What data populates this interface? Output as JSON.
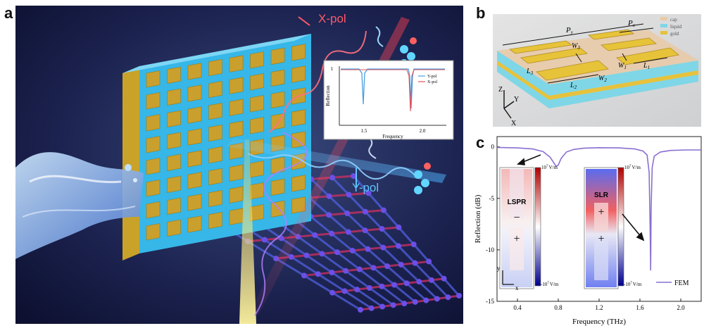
{
  "panels": {
    "a": "a",
    "b": "b",
    "c": "c"
  },
  "panel_a": {
    "xpol_label": "X-pol",
    "ypol_label": "Y-pol",
    "inset": {
      "ylabel": "Reflection",
      "xlabel": "Frequency",
      "ytick": "1",
      "xticks": [
        "1.5",
        "2.0"
      ],
      "legend": [
        "Y-pol",
        "X-pol"
      ],
      "colors": {
        "ypol": "#4a9fe0",
        "xpol": "#e0505a"
      }
    }
  },
  "panel_b": {
    "legend": [
      "cap",
      "liquid",
      "gold"
    ],
    "legend_colors": [
      "#e9c9a6",
      "#7fd6e6",
      "#e6c23c"
    ],
    "dims": {
      "px": "P",
      "px_sub": "x",
      "py": "P",
      "py_sub": "y",
      "w1": "W",
      "w1_sub": "1",
      "w2": "W",
      "w2_sub": "2",
      "w3": "W",
      "w3_sub": "3",
      "l1": "L",
      "l1_sub": "1",
      "l2": "L",
      "l2_sub": "2",
      "l3": "L",
      "l3_sub": "3"
    },
    "axes": {
      "z": "Z",
      "y": "Y",
      "x": "X"
    }
  },
  "panel_c": {
    "lspr": {
      "label": "LSPR",
      "minus": "−",
      "plus": "+",
      "top": "10",
      "top_exp": "7",
      "top_unit": "V/m",
      "bottom": "-10",
      "bottom_exp": "7",
      "bottom_unit": "V/m"
    },
    "slr": {
      "label": "SLR",
      "plus1": "+",
      "plus2": "+",
      "top": "10",
      "top_exp": "7",
      "top_unit": "V/m",
      "bottom": "-10",
      "bottom_exp": "7",
      "bottom_unit": "V/m"
    },
    "inset_axes": {
      "y": "y",
      "x": "x"
    }
  },
  "chart_data": {
    "type": "line",
    "xlabel": "Frequency (THz)",
    "ylabel": "Reflection (dB)",
    "xlim": [
      0.2,
      2.2
    ],
    "ylim": [
      -15,
      1
    ],
    "xticks": [
      0.4,
      0.8,
      1.2,
      1.6,
      2.0
    ],
    "xtick_labels": [
      "0.4",
      "0.8",
      "1.2",
      "1.6",
      "2.0"
    ],
    "yticks": [
      0,
      -5,
      -10,
      -15
    ],
    "ytick_labels": [
      "0",
      "-5",
      "-10",
      "-15"
    ],
    "legend": "bottom-right",
    "series": [
      {
        "name": "FEM",
        "color": "#8a6fd0",
        "x": [
          0.2,
          0.4,
          0.55,
          0.65,
          0.72,
          0.76,
          0.78,
          0.8,
          0.83,
          0.88,
          0.95,
          1.05,
          1.2,
          1.4,
          1.55,
          1.63,
          1.67,
          1.69,
          1.7,
          1.705,
          1.71,
          1.72,
          1.74,
          1.8,
          1.9,
          2.05,
          2.2
        ],
        "y": [
          -0.05,
          -0.1,
          -0.2,
          -0.45,
          -1.0,
          -1.6,
          -1.9,
          -1.75,
          -1.1,
          -0.5,
          -0.25,
          -0.12,
          -0.08,
          -0.1,
          -0.2,
          -0.4,
          -0.8,
          -2.5,
          -8.0,
          -12.0,
          -6.0,
          -2.0,
          -0.9,
          -0.5,
          -0.35,
          -0.3,
          -0.3
        ]
      }
    ]
  }
}
